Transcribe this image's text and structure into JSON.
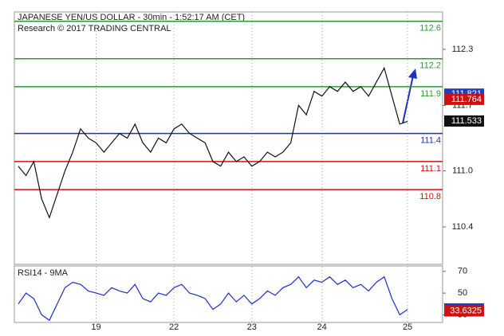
{
  "chart_data": {
    "type": "line",
    "title": "JAPANESE YEN/US DOLLAR - 30min - 1:52:17 AM (CET)",
    "subtitle": "Research © 2017 TRADING CENTRAL",
    "categories": [
      null,
      null,
      null,
      null,
      null,
      null,
      null,
      null,
      null,
      null,
      "19",
      null,
      null,
      null,
      null,
      null,
      null,
      null,
      null,
      null,
      "22",
      null,
      null,
      null,
      null,
      null,
      null,
      null,
      null,
      null,
      "23",
      null,
      null,
      null,
      null,
      null,
      null,
      null,
      null,
      "24",
      null,
      null,
      null,
      null,
      null,
      null,
      null,
      null,
      null,
      null,
      "25",
      null,
      null,
      null,
      null
    ],
    "series": [
      {
        "color": "#111111",
        "values": [
          111.05,
          110.95,
          111.1,
          110.7,
          110.5,
          110.75,
          111.0,
          111.2,
          111.45,
          111.35,
          111.3,
          111.2,
          111.3,
          111.4,
          111.35,
          111.5,
          111.3,
          111.2,
          111.35,
          111.3,
          111.45,
          111.5,
          111.4,
          111.35,
          111.3,
          111.1,
          111.05,
          111.2,
          111.1,
          111.15,
          111.05,
          111.1,
          111.2,
          111.15,
          111.2,
          111.3,
          111.7,
          111.6,
          111.85,
          111.8,
          111.9,
          111.85,
          111.95,
          111.85,
          111.9,
          111.8,
          111.95,
          112.1,
          111.8,
          111.5,
          111.53,
          null,
          null,
          null,
          null
        ]
      }
    ],
    "ylim": [
      110.0,
      112.7
    ],
    "yticks": [
      112.3,
      111.7,
      {
        "value": 111,
        "label": "111.0"
      },
      110.4
    ],
    "levels": [
      {
        "value": 112.6,
        "color": "#2e9a2e"
      },
      {
        "value": 112.2,
        "color": "#2e9a2e"
      },
      {
        "value": 111.9,
        "color": "#2e9a2e"
      },
      {
        "value": 111.4,
        "color": "#1f2fbf"
      },
      {
        "value": 111.1,
        "color": "#d01010"
      },
      {
        "value": 110.8,
        "color": "#d01010"
      }
    ],
    "price_tags": [
      {
        "value": 111.821,
        "color": "#1f3fbf"
      },
      {
        "value": 111.764,
        "color": "#d01010"
      },
      {
        "value": 111.533,
        "color": "#111111"
      }
    ],
    "rsi": {
      "title": "RSI14 - 9MA",
      "color": "#1f2fbf",
      "values": [
        40,
        50,
        45,
        30,
        25,
        40,
        55,
        60,
        58,
        52,
        50,
        48,
        55,
        52,
        50,
        58,
        45,
        42,
        50,
        48,
        55,
        58,
        50,
        48,
        45,
        35,
        40,
        50,
        42,
        48,
        40,
        45,
        52,
        48,
        55,
        58,
        65,
        55,
        62,
        60,
        65,
        58,
        62,
        55,
        58,
        52,
        60,
        65,
        45,
        30,
        35,
        null,
        null,
        null,
        null
      ],
      "ylim": [
        23,
        75
      ],
      "yticks": [
        70,
        50,
        30
      ],
      "tags": [
        {
          "value": 35.463,
          "color": "#1f3fbf"
        },
        {
          "value": 33.6325,
          "color": "#d01010"
        }
      ]
    }
  }
}
